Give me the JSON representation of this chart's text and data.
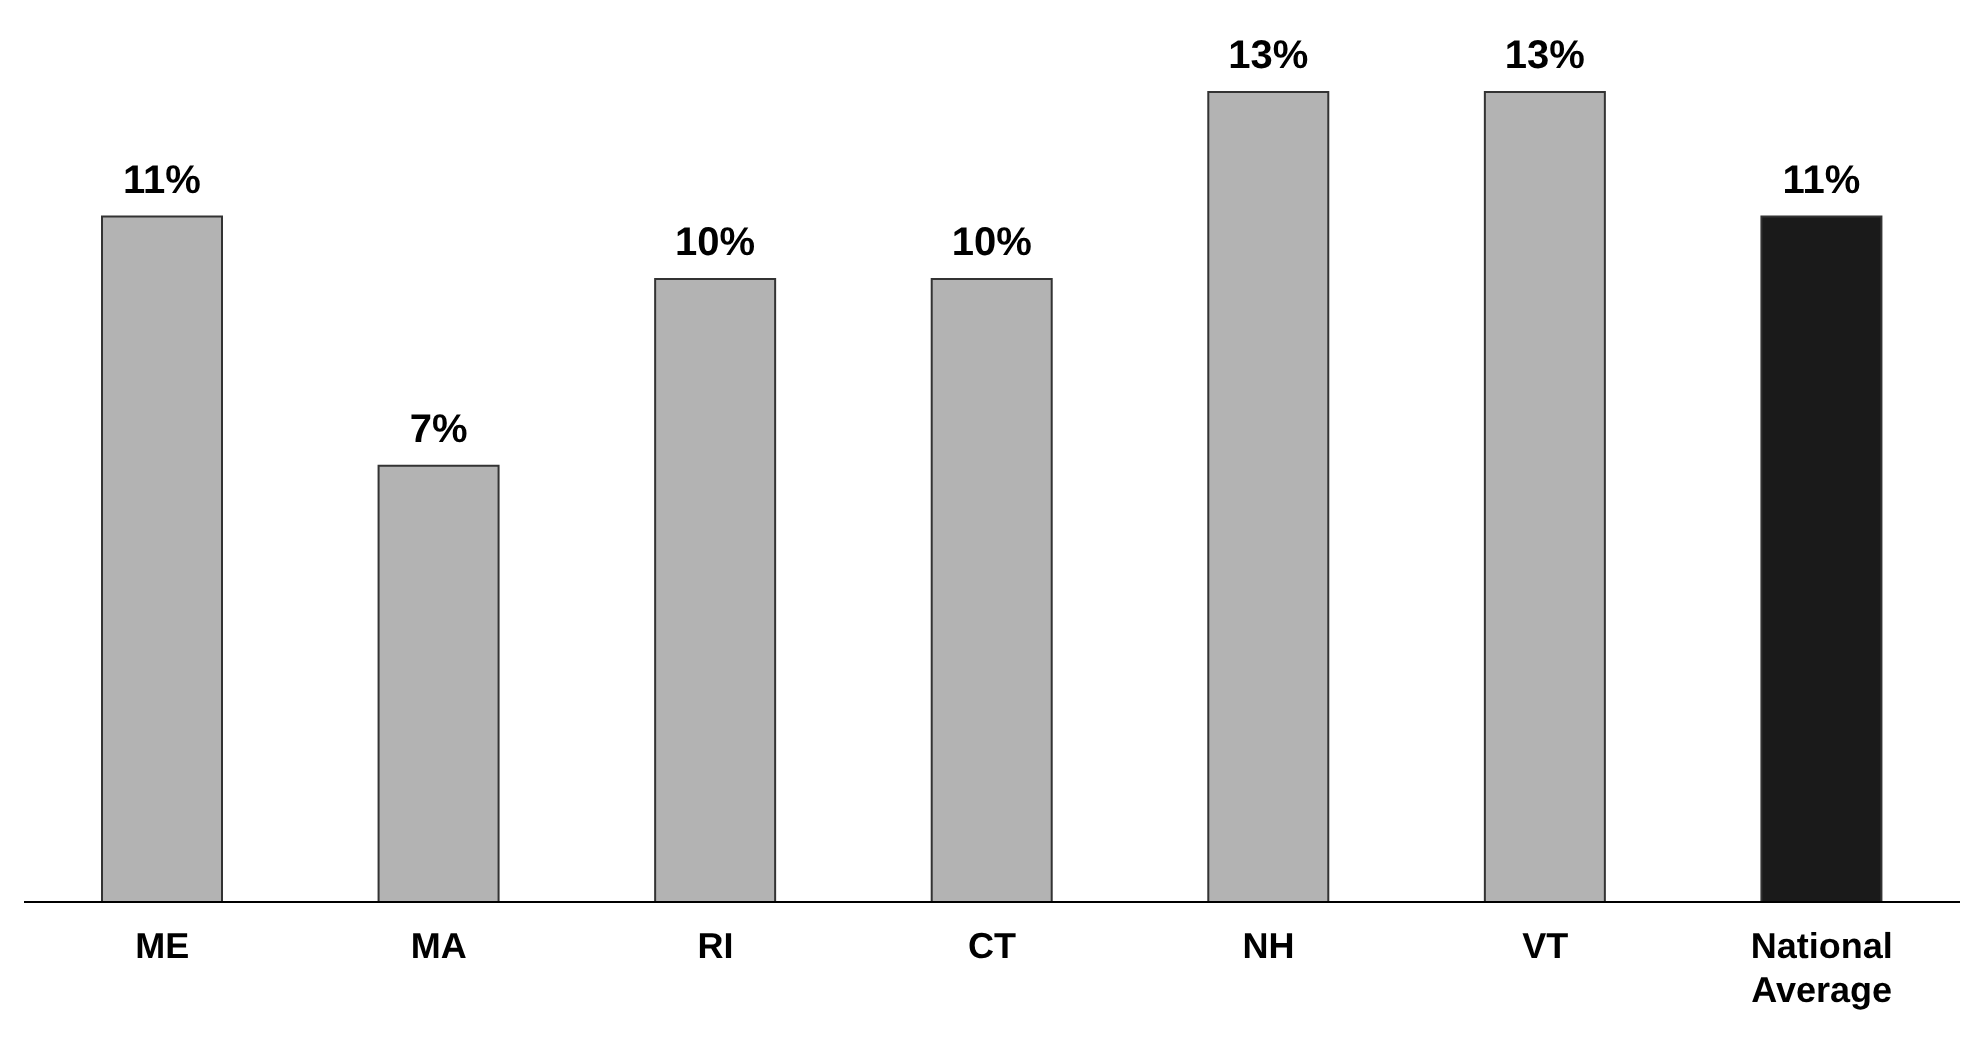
{
  "chart_data": {
    "type": "bar",
    "categories": [
      "ME",
      "MA",
      "RI",
      "CT",
      "NH",
      "VT",
      "National Average"
    ],
    "values": [
      11,
      7,
      10,
      10,
      13,
      13,
      11
    ],
    "colors": [
      "#b3b3b3",
      "#b3b3b3",
      "#b3b3b3",
      "#b3b3b3",
      "#b3b3b3",
      "#b3b3b3",
      "#1a1a1a"
    ],
    "value_labels": [
      "11%",
      "7%",
      "10%",
      "10%",
      "13%",
      "13%",
      "11%"
    ],
    "tick_labels": "x"
  }
}
